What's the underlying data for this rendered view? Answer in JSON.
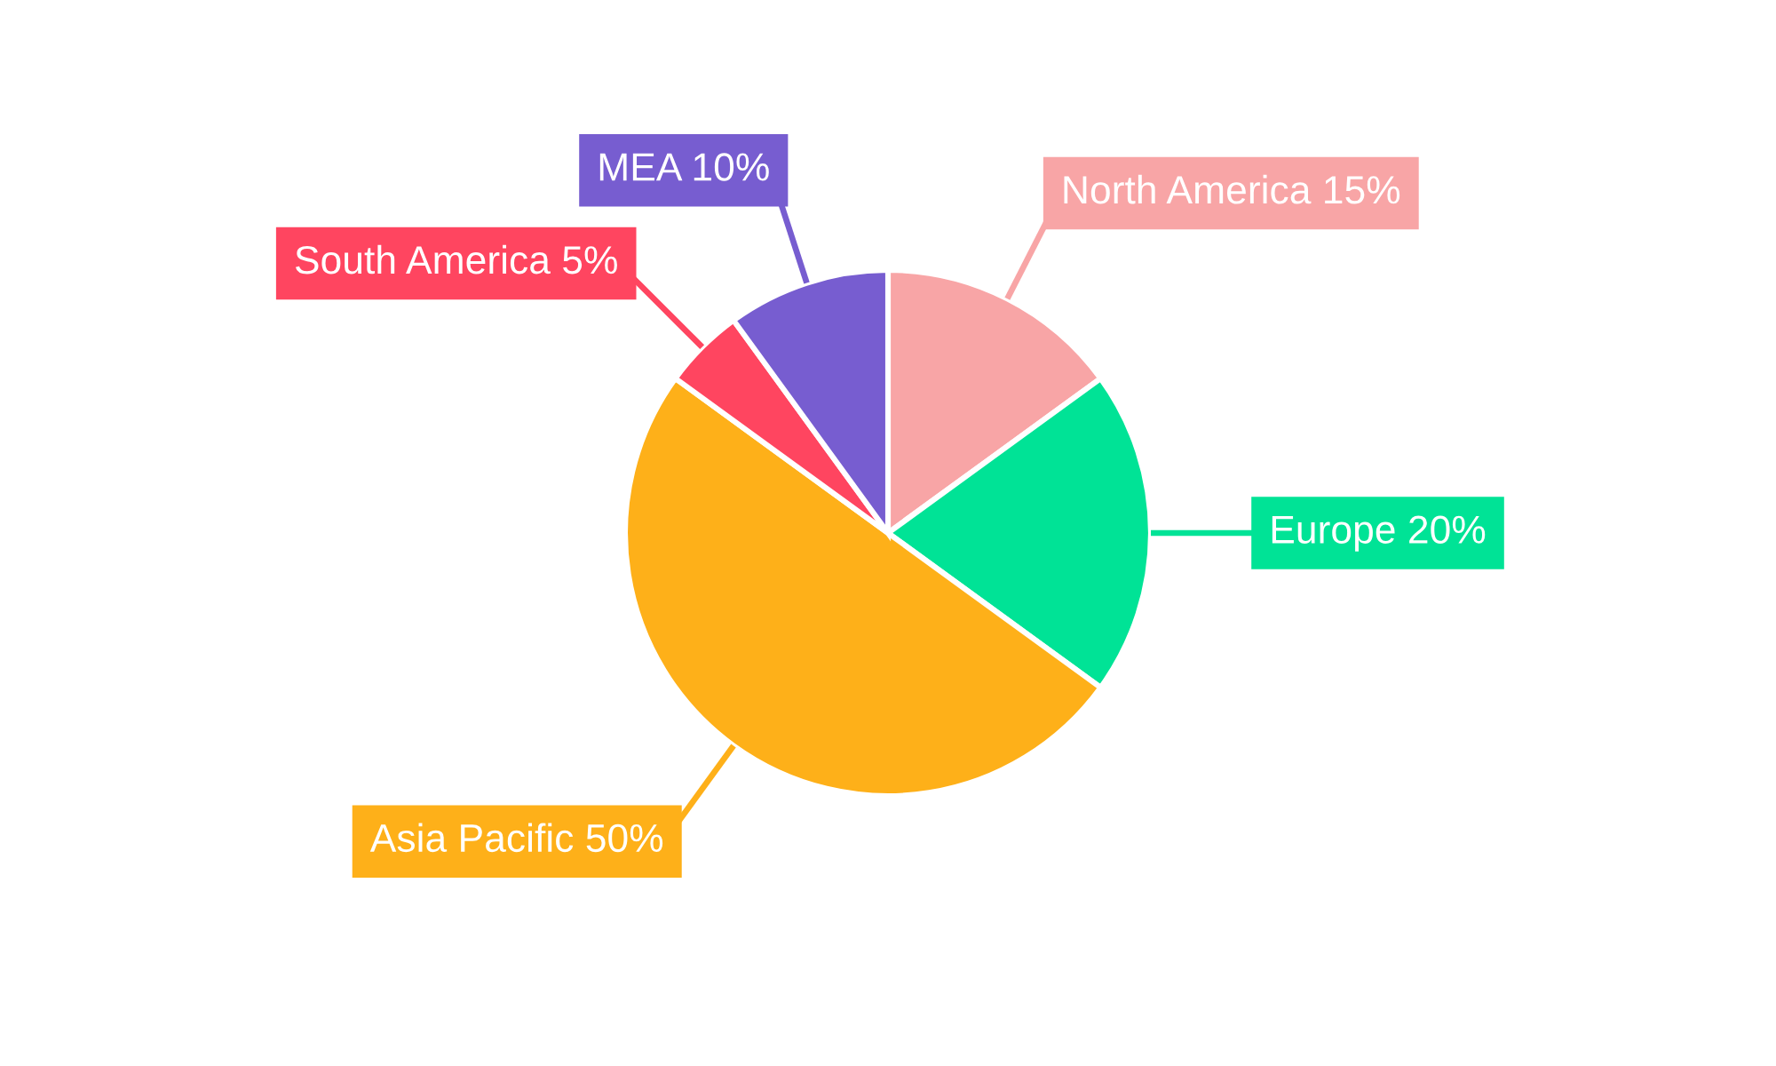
{
  "chart_data": {
    "type": "pie",
    "categories": [
      "North America",
      "Europe",
      "Asia Pacific",
      "South America",
      "MEA"
    ],
    "values": [
      15,
      20,
      50,
      5,
      10
    ],
    "colors": [
      "#f8a5a6",
      "#00e396",
      "#feb019",
      "#ff4560",
      "#775dd0"
    ],
    "value_labels": [
      "15%",
      "20%",
      "50%",
      "5%",
      "10%"
    ]
  }
}
